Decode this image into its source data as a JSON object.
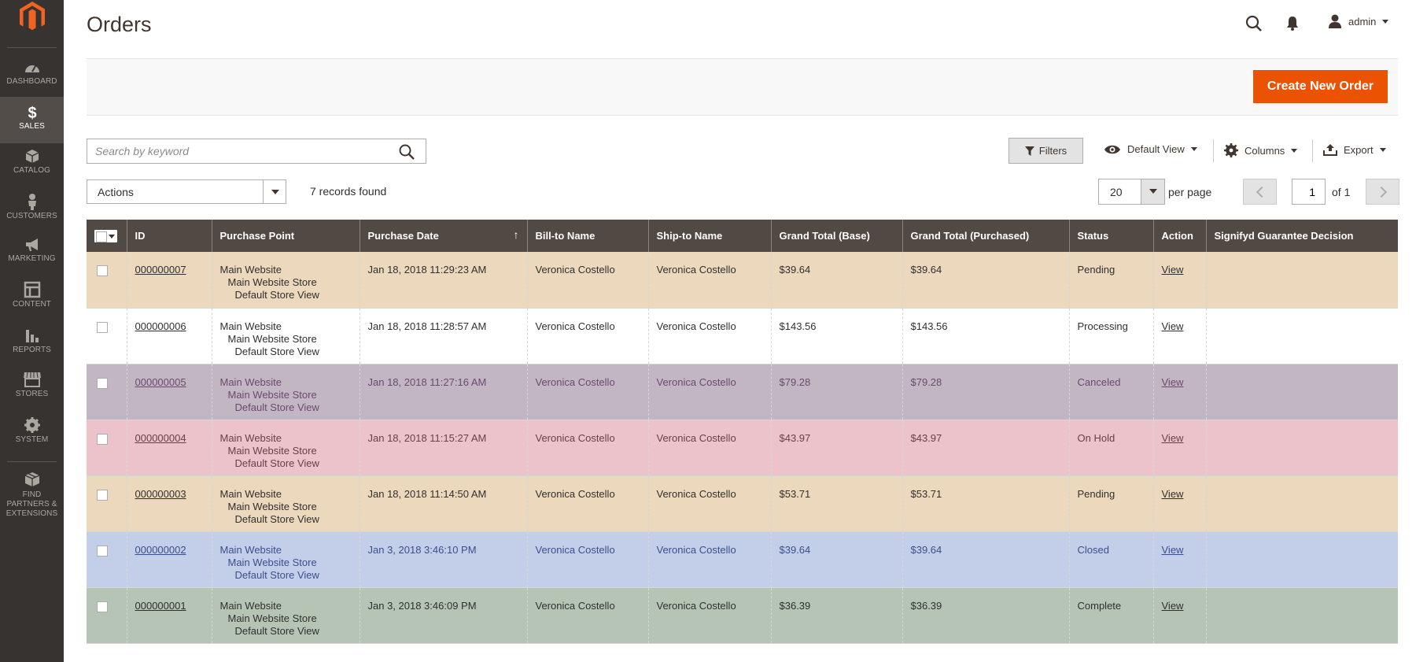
{
  "nav": {
    "items": [
      {
        "label": "Dashboard",
        "icon": "dashboard-icon"
      },
      {
        "label": "Sales",
        "icon": "dollar-icon",
        "active": true
      },
      {
        "label": "Catalog",
        "icon": "box-icon"
      },
      {
        "label": "Customers",
        "icon": "person-icon"
      },
      {
        "label": "Marketing",
        "icon": "megaphone-icon"
      },
      {
        "label": "Content",
        "icon": "layout-icon"
      },
      {
        "label": "Reports",
        "icon": "bar-chart-icon"
      },
      {
        "label": "Stores",
        "icon": "storefront-icon"
      },
      {
        "label": "System",
        "icon": "gear-icon"
      },
      {
        "label": "Find Partners & Extensions",
        "icon": "blocks-icon"
      }
    ]
  },
  "header": {
    "title": "Orders",
    "user": "admin"
  },
  "toolbar": {
    "create_label": "Create New Order",
    "search_placeholder": "Search by keyword",
    "filters_label": "Filters",
    "view_label": "Default View",
    "columns_label": "Columns",
    "export_label": "Export",
    "actions_label": "Actions",
    "records_label": "7 records found",
    "per_page_value": "20",
    "per_page_label": "per page",
    "page_value": "1",
    "of_label": "of 1"
  },
  "grid": {
    "columns": [
      "ID",
      "Purchase Point",
      "Purchase Date",
      "Bill-to Name",
      "Ship-to Name",
      "Grand Total (Base)",
      "Grand Total (Purchased)",
      "Status",
      "Action",
      "Signifyd Guarantee Decision"
    ],
    "rows": [
      {
        "id": "000000007",
        "pp1": "Main Website",
        "pp2": "Main Website Store",
        "pp3": "Default Store View",
        "date": "Jan 18, 2018 11:29:23 AM",
        "bill": "Veronica Costello",
        "ship": "Veronica Costello",
        "base": "$39.64",
        "purchased": "$39.64",
        "status": "Pending",
        "action": "View",
        "signifyd": "",
        "bg": "#ecd8bd",
        "fg": "#303030"
      },
      {
        "id": "000000006",
        "pp1": "Main Website",
        "pp2": "Main Website Store",
        "pp3": "Default Store View",
        "date": "Jan 18, 2018 11:28:57 AM",
        "bill": "Veronica Costello",
        "ship": "Veronica Costello",
        "base": "$143.56",
        "purchased": "$143.56",
        "status": "Processing",
        "action": "View",
        "signifyd": "",
        "bg": "#ffffff",
        "fg": "#303030"
      },
      {
        "id": "000000005",
        "pp1": "Main Website",
        "pp2": "Main Website Store",
        "pp3": "Default Store View",
        "date": "Jan 18, 2018 11:27:16 AM",
        "bill": "Veronica Costello",
        "ship": "Veronica Costello",
        "base": "$79.28",
        "purchased": "$79.28",
        "status": "Canceled",
        "action": "View",
        "signifyd": "",
        "bg": "#c2b6c3",
        "fg": "#6b4a6e"
      },
      {
        "id": "000000004",
        "pp1": "Main Website",
        "pp2": "Main Website Store",
        "pp3": "Default Store View",
        "date": "Jan 18, 2018 11:15:27 AM",
        "bill": "Veronica Costello",
        "ship": "Veronica Costello",
        "base": "$43.97",
        "purchased": "$43.97",
        "status": "On Hold",
        "action": "View",
        "signifyd": "",
        "bg": "#ecc2cb",
        "fg": "#6b3f47"
      },
      {
        "id": "000000003",
        "pp1": "Main Website",
        "pp2": "Main Website Store",
        "pp3": "Default Store View",
        "date": "Jan 18, 2018 11:14:50 AM",
        "bill": "Veronica Costello",
        "ship": "Veronica Costello",
        "base": "$53.71",
        "purchased": "$53.71",
        "status": "Pending",
        "action": "View",
        "signifyd": "",
        "bg": "#ecd8bd",
        "fg": "#303030"
      },
      {
        "id": "000000002",
        "pp1": "Main Website",
        "pp2": "Main Website Store",
        "pp3": "Default Store View",
        "date": "Jan 3, 2018 3:46:10 PM",
        "bill": "Veronica Costello",
        "ship": "Veronica Costello",
        "base": "$39.64",
        "purchased": "$39.64",
        "status": "Closed",
        "action": "View",
        "signifyd": "",
        "bg": "#c3cfe8",
        "fg": "#3b4f8e"
      },
      {
        "id": "000000001",
        "pp1": "Main Website",
        "pp2": "Main Website Store",
        "pp3": "Default Store View",
        "date": "Jan 3, 2018 3:46:09 PM",
        "bill": "Veronica Costello",
        "ship": "Veronica Costello",
        "base": "$36.39",
        "purchased": "$36.39",
        "status": "Complete",
        "action": "View",
        "signifyd": "",
        "bg": "#b5c4b5",
        "fg": "#303030"
      }
    ]
  },
  "colors": {
    "sidebar": "#373330",
    "accent": "#eb5202",
    "header_row": "#514943"
  }
}
